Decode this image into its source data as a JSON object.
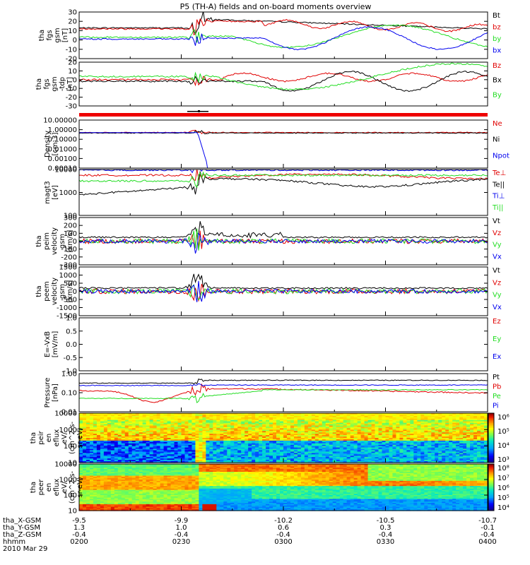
{
  "title": "P5 (TH-A) fields and on-board moments overview",
  "colors": {
    "black": "#000000",
    "red": "#e00000",
    "green": "#22dd22",
    "blue": "#0000ee"
  },
  "chart_data": [
    {
      "type": "line",
      "panel": "fgs_gsm",
      "ylabel": [
        "tha",
        "fgs",
        "gsm",
        "[nT]"
      ],
      "ylim": [
        -20,
        30
      ],
      "ticks": [
        "30",
        "20",
        "10",
        "0",
        "-10",
        "-20"
      ],
      "series": [
        {
          "name": "Bt",
          "color": "black"
        },
        {
          "name": "bz",
          "color": "red"
        },
        {
          "name": "by",
          "color": "green"
        },
        {
          "name": "bx",
          "color": "blue"
        }
      ]
    },
    {
      "type": "line",
      "panel": "fgs_gsm_tdp",
      "ylabel": [
        "tha",
        "fgs",
        "gsm",
        "-tdp",
        "[nT]"
      ],
      "ylim": [
        -35,
        20
      ],
      "ticks": [
        "20",
        "10",
        "0",
        "-10",
        "-20",
        "-30"
      ],
      "series": [
        {
          "name": "Bz",
          "color": "red"
        },
        {
          "name": "Bx",
          "color": "black"
        },
        {
          "name": "By",
          "color": "green"
        }
      ]
    },
    {
      "type": "line",
      "panel": "density",
      "ylabel": [
        "Density",
        "[cm-3]"
      ],
      "log": true,
      "ylim": [
        0.0001,
        10
      ],
      "ticks": [
        "10.00000",
        "1.00000",
        "0.10000",
        "0.01000",
        "0.00100",
        "0.00010"
      ],
      "series": [
        {
          "name": "Ne",
          "color": "red"
        },
        {
          "name": "Ni",
          "color": "black"
        },
        {
          "name": "Npot",
          "color": "blue"
        }
      ]
    },
    {
      "type": "line",
      "panel": "temperature",
      "ylabel": [
        "magt3",
        "[eV]"
      ],
      "log": true,
      "ylim": [
        100,
        10000
      ],
      "ticks": [
        "10000",
        "1000",
        "100"
      ],
      "series": [
        {
          "name": "Te⊥",
          "color": "red"
        },
        {
          "name": "Te||",
          "color": "black"
        },
        {
          "name": "Ti⊥",
          "color": "blue"
        },
        {
          "name": "Ti||",
          "color": "green"
        }
      ]
    },
    {
      "type": "line",
      "panel": "peim_velocity",
      "ylabel": [
        "tha",
        "peim",
        "velocity",
        "gsm",
        "[km/s]"
      ],
      "ylim": [
        -300,
        300
      ],
      "ticks": [
        "300",
        "200",
        "100",
        "0",
        "-100",
        "-200",
        "-300"
      ],
      "series": [
        {
          "name": "Vt",
          "color": "black"
        },
        {
          "name": "Vz",
          "color": "red"
        },
        {
          "name": "Vy",
          "color": "green"
        },
        {
          "name": "Vx",
          "color": "blue"
        }
      ]
    },
    {
      "type": "line",
      "panel": "peem_velocity",
      "ylabel": [
        "tha",
        "peem",
        "velocity",
        "gsm",
        "[km/s]"
      ],
      "ylim": [
        -1500,
        1500
      ],
      "ticks": [
        "1500",
        "1000",
        "500",
        "0",
        "-500",
        "-1000",
        "-1500"
      ],
      "series": [
        {
          "name": "Vt",
          "color": "black"
        },
        {
          "name": "Vz",
          "color": "red"
        },
        {
          "name": "Vy",
          "color": "green"
        },
        {
          "name": "Vx",
          "color": "blue"
        }
      ]
    },
    {
      "type": "line",
      "panel": "efield",
      "ylabel": [
        "E=-VxB",
        "[mV/m]"
      ],
      "ylim": [
        -1,
        1
      ],
      "ticks": [
        "1.0",
        "0.5",
        "0.0",
        "-0.5",
        "-1.0"
      ],
      "series": [
        {
          "name": "Ez",
          "color": "red"
        },
        {
          "name": "Ey",
          "color": "green"
        },
        {
          "name": "Ex",
          "color": "blue"
        }
      ]
    },
    {
      "type": "line",
      "panel": "pressure",
      "ylabel": [
        "Pressure",
        "[nPa]"
      ],
      "log": true,
      "ylim": [
        0.01,
        1
      ],
      "ticks": [
        "1.00",
        "0.10",
        "0.01"
      ],
      "series": [
        {
          "name": "Pt",
          "color": "black"
        },
        {
          "name": "Pb",
          "color": "red"
        },
        {
          "name": "Pe",
          "color": "green"
        },
        {
          "name": "Pi",
          "color": "blue"
        }
      ]
    },
    {
      "type": "heatmap",
      "panel": "peir_eflux",
      "ylabel": [
        "tha",
        "peir",
        "en",
        "eflux",
        "eV/",
        "(cm^2-s-",
        "sr-eV)"
      ],
      "log": true,
      "ylim": [
        10,
        10000
      ],
      "ticks": [
        "10000",
        "1000",
        "100",
        "10"
      ],
      "colorbar": {
        "ticks": [
          "10⁶",
          "10⁵",
          "10⁴",
          "10³"
        ]
      }
    },
    {
      "type": "heatmap",
      "panel": "peer_eflux",
      "ylabel": [
        "tha",
        "peer",
        "en",
        "eflux",
        "eV/",
        "(cm^2-s-",
        "sr-eV)"
      ],
      "log": true,
      "ylim": [
        10,
        10000
      ],
      "ticks": [
        "10000",
        "1000",
        "100",
        "10"
      ],
      "colorbar": {
        "ticks": [
          "10⁸",
          "10⁷",
          "10⁶",
          "10⁵",
          "10⁴"
        ]
      }
    }
  ],
  "xaxis": {
    "rows": [
      {
        "label": "tha_X-GSM",
        "values": [
          "-9.5",
          "-9.9",
          "-10.2",
          "-10.5",
          "-10.7"
        ]
      },
      {
        "label": "tha_Y-GSM",
        "values": [
          "1.3",
          "1.0",
          "0.6",
          "0.3",
          "-0.1"
        ]
      },
      {
        "label": "tha_Z-GSM",
        "values": [
          "-0.4",
          "-0.4",
          "-0.4",
          "-0.4",
          "-0.4"
        ]
      },
      {
        "label": "hhmm",
        "values": [
          "0200",
          "0230",
          "0300",
          "0330",
          "0400"
        ]
      }
    ],
    "date": "2010 Mar 29"
  }
}
